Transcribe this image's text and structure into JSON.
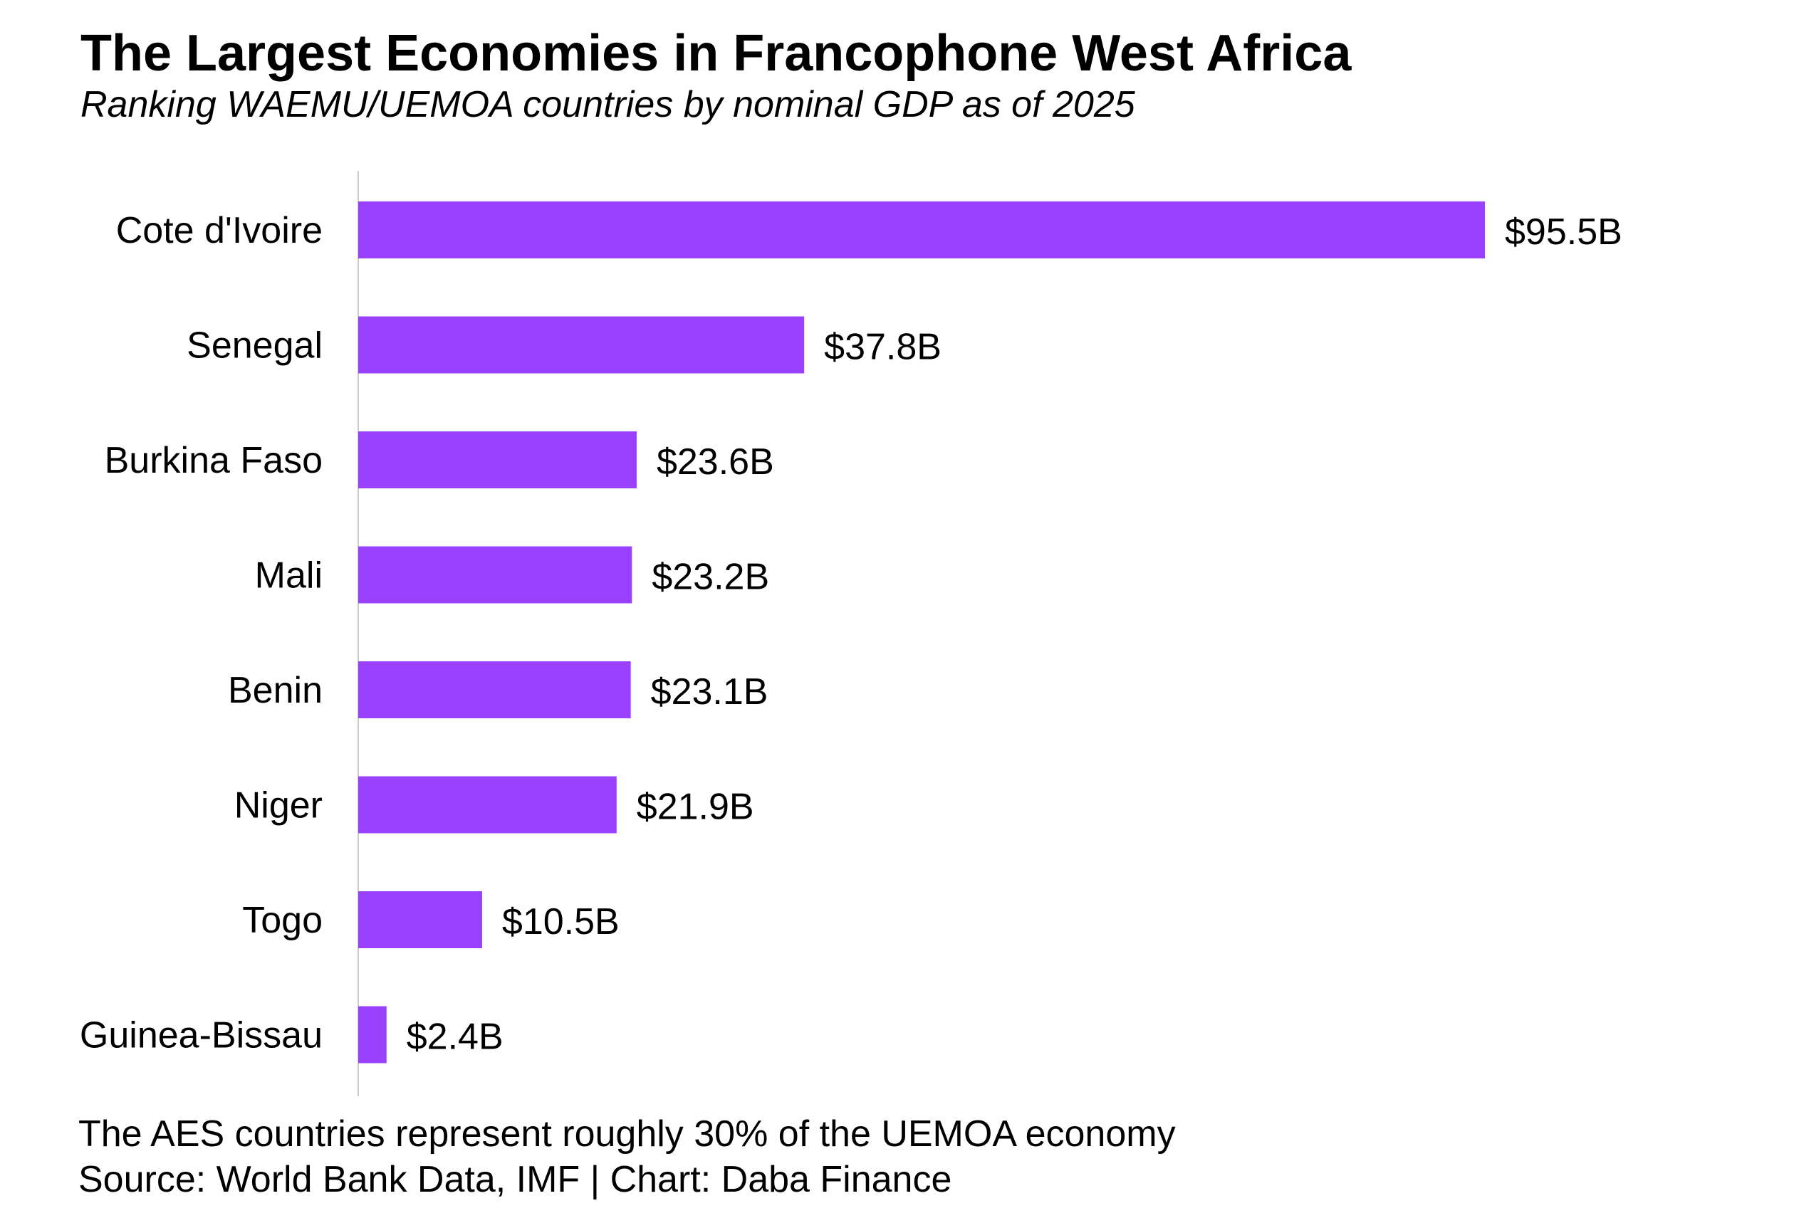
{
  "header": {
    "title": "The Largest Economies in Francophone West Africa",
    "subtitle": "Ranking WAEMU/UEMOA countries by nominal GDP as of 2025"
  },
  "footer": {
    "note": "The AES countries represent roughly 30% of the UEMOA economy",
    "source": "Source: World Bank Data, IMF | Chart: Daba Finance"
  },
  "colors": {
    "bar": "#9a40ff",
    "axis": "#cccccc",
    "text": "#000000"
  },
  "chart_data": {
    "type": "bar",
    "orientation": "horizontal",
    "title": "The Largest Economies in Francophone West Africa",
    "subtitle": "Ranking WAEMU/UEMOA countries by nominal GDP as of 2025",
    "xlabel": "",
    "ylabel": "",
    "unit": "USD billions",
    "categories": [
      "Cote d'Ivoire",
      "Senegal",
      "Burkina Faso",
      "Mali",
      "Benin",
      "Niger",
      "Togo",
      "Guinea-Bissau"
    ],
    "values": [
      95.5,
      37.8,
      23.6,
      23.2,
      23.1,
      21.9,
      10.5,
      2.4
    ],
    "labels": [
      "$95.5B",
      "$37.8B",
      "$23.6B",
      "$23.2B",
      "$23.1B",
      "$21.9B",
      "$10.5B",
      "$2.4B"
    ],
    "xlim": [
      0,
      95.5
    ],
    "grid": false,
    "legend": "none"
  }
}
